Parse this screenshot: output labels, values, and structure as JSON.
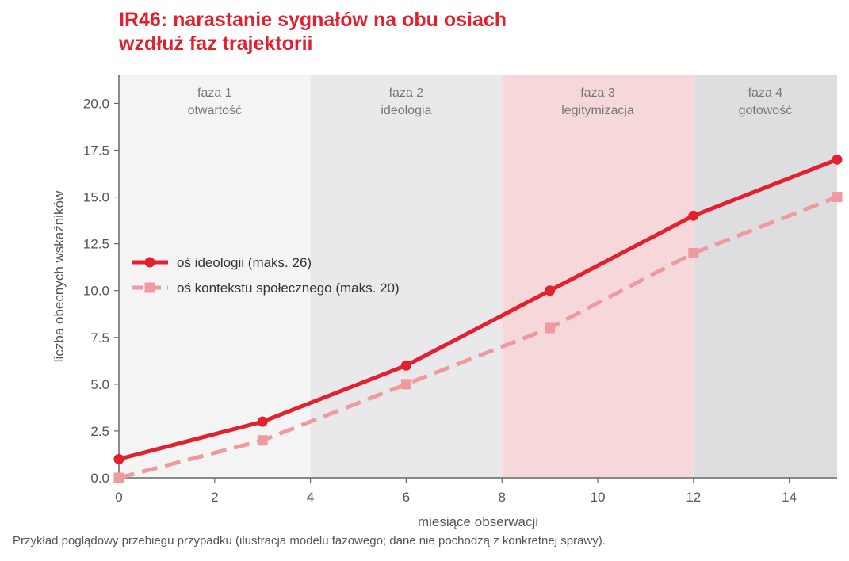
{
  "title_lines": [
    "IR46: narastanie sygnałów na obu osiach",
    "wzdłuż faz trajektorii"
  ],
  "caption": "Przykład poglądowy przebiegu przypadku (ilustracja modelu fazowego; dane nie pochodzą z konkretnej sprawy).",
  "colors": {
    "title": "#e3202e",
    "series_ideology": "#e3202e",
    "series_social": "#ef9a9e",
    "phase_1": "#f4f4f4",
    "phase_2": "#e9e9eb",
    "phase_3": "#f7d8da",
    "phase_4": "#dedee0",
    "axis": "#666666",
    "tick_text": "#555555",
    "phase_text": "#777777"
  },
  "chart_data": {
    "type": "line",
    "xlabel": "miesiące obserwacji",
    "ylabel": "liczba obecnych wskaźników",
    "xlim": [
      0,
      15
    ],
    "ylim": [
      0,
      21.5
    ],
    "xticks": [
      0,
      2,
      4,
      6,
      8,
      10,
      12,
      14
    ],
    "yticks": [
      0,
      2.5,
      5,
      7.5,
      10,
      12.5,
      15,
      17.5,
      20
    ],
    "grid": false,
    "legend_position": "middle-left",
    "phases": [
      {
        "line1": "faza 1",
        "line2": "otwartość",
        "start": 0,
        "end": 4,
        "color_key": "phase_1"
      },
      {
        "line1": "faza 2",
        "line2": "ideologia",
        "start": 4,
        "end": 8,
        "color_key": "phase_2"
      },
      {
        "line1": "faza 3",
        "line2": "legitymizacja",
        "start": 8,
        "end": 12,
        "color_key": "phase_3"
      },
      {
        "line1": "faza 4",
        "line2": "gotowość",
        "start": 12,
        "end": 15,
        "color_key": "phase_4"
      }
    ],
    "series": [
      {
        "name": "oś ideologii (maks. 26)",
        "style": "solid",
        "marker": "circle",
        "color_key": "series_ideology",
        "x": [
          0,
          3,
          6,
          9,
          12,
          15
        ],
        "y": [
          1,
          3,
          6,
          10,
          14,
          17
        ]
      },
      {
        "name": "oś kontekstu społecznego (maks. 20)",
        "style": "dashed",
        "marker": "square",
        "color_key": "series_social",
        "x": [
          0,
          3,
          6,
          9,
          12,
          15
        ],
        "y": [
          0,
          2,
          5,
          8,
          12,
          15
        ]
      }
    ]
  }
}
